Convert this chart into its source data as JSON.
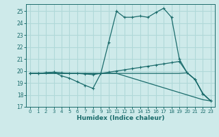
{
  "xlabel": "Humidex (Indice chaleur)",
  "bg_color": "#ceeaea",
  "grid_color": "#b0d8d8",
  "line_color": "#1a6b6b",
  "xlim": [
    -0.5,
    23.5
  ],
  "ylim": [
    17,
    25.6
  ],
  "yticks": [
    17,
    18,
    19,
    20,
    21,
    22,
    23,
    24,
    25
  ],
  "xticks": [
    0,
    1,
    2,
    3,
    4,
    5,
    6,
    7,
    8,
    9,
    10,
    11,
    12,
    13,
    14,
    15,
    16,
    17,
    18,
    19,
    20,
    21,
    22,
    23
  ],
  "line1_x": [
    0,
    1,
    2,
    3,
    4,
    5,
    6,
    7,
    8,
    9,
    10,
    11,
    12,
    13,
    14,
    15,
    16,
    17,
    18,
    19,
    20,
    21,
    22,
    23
  ],
  "line1_y": [
    19.8,
    19.8,
    19.85,
    19.9,
    19.6,
    19.4,
    19.1,
    18.8,
    18.55,
    19.8,
    22.4,
    25.0,
    24.5,
    24.5,
    24.6,
    24.5,
    24.9,
    25.25,
    24.5,
    21.0,
    19.85,
    19.3,
    18.1,
    17.5
  ],
  "line2_x": [
    0,
    1,
    2,
    3,
    4,
    5,
    6,
    7,
    8,
    9,
    10,
    11,
    12,
    13,
    14,
    15,
    16,
    17,
    18,
    19,
    20,
    21,
    22,
    23
  ],
  "line2_y": [
    19.8,
    19.8,
    19.85,
    19.9,
    19.85,
    19.8,
    19.8,
    19.75,
    19.7,
    19.8,
    19.9,
    20.0,
    20.1,
    20.2,
    20.3,
    20.4,
    20.5,
    20.6,
    20.7,
    20.8,
    19.85,
    19.3,
    18.1,
    17.5
  ],
  "line3_x": [
    0,
    1,
    2,
    3,
    4,
    5,
    6,
    7,
    8,
    9,
    10,
    11,
    12,
    13,
    14,
    15,
    16,
    17,
    18,
    19,
    20,
    21,
    22,
    23
  ],
  "line3_y": [
    19.8,
    19.8,
    19.8,
    19.8,
    19.8,
    19.8,
    19.8,
    19.8,
    19.8,
    19.8,
    19.8,
    19.8,
    19.8,
    19.8,
    19.8,
    19.8,
    19.8,
    19.8,
    19.8,
    19.8,
    19.85,
    19.3,
    18.1,
    17.5
  ],
  "line4_x": [
    0,
    1,
    2,
    3,
    4,
    5,
    6,
    7,
    8,
    9,
    10,
    11,
    12,
    13,
    14,
    15,
    16,
    17,
    18,
    19,
    20,
    21,
    22,
    23
  ],
  "line4_y": [
    19.8,
    19.8,
    19.8,
    19.8,
    19.8,
    19.8,
    19.8,
    19.8,
    19.8,
    19.8,
    19.8,
    19.8,
    19.6,
    19.4,
    19.2,
    19.0,
    18.8,
    18.6,
    18.4,
    18.2,
    18.0,
    17.8,
    17.6,
    17.5
  ]
}
